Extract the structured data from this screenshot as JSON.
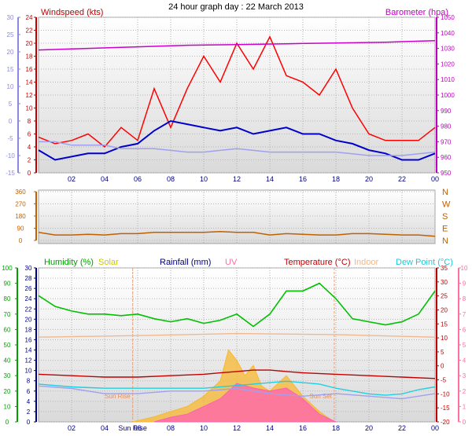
{
  "title": "24 hour graph day : 22 March 2013",
  "chart_data": [
    {
      "id": "wind",
      "type": "line",
      "labels": {
        "left": "Windspeed (kts)",
        "right": "Barometer (hpa)"
      },
      "x_ticks": [
        "02",
        "04",
        "06",
        "08",
        "10",
        "12",
        "14",
        "16",
        "18",
        "20",
        "22",
        "00"
      ],
      "axes": {
        "far_left": {
          "ticks": [
            30,
            25,
            20,
            15,
            10,
            5,
            0,
            -5,
            -10,
            -15
          ],
          "range": [
            -15,
            30
          ],
          "color": "#8a8ae0"
        },
        "left": {
          "ticks": [
            24,
            22,
            20,
            18,
            16,
            14,
            12,
            10,
            8,
            6,
            4,
            2,
            0
          ],
          "range": [
            0,
            24
          ],
          "color": "#c00000"
        },
        "right": {
          "ticks": [
            1050,
            1040,
            1030,
            1020,
            1010,
            1000,
            990,
            980,
            970,
            960,
            950
          ],
          "range": [
            950,
            1050
          ],
          "color": "#c000c0"
        }
      },
      "series": [
        {
          "key": "gust",
          "color": "#ff0000",
          "points": [
            [
              0,
              5.5
            ],
            [
              1,
              4.5
            ],
            [
              2,
              5
            ],
            [
              3,
              6
            ],
            [
              4,
              4
            ],
            [
              5,
              7
            ],
            [
              6,
              5
            ],
            [
              7,
              13
            ],
            [
              8,
              7
            ],
            [
              9,
              13
            ],
            [
              10,
              18
            ],
            [
              11,
              14
            ],
            [
              12,
              20
            ],
            [
              13,
              16
            ],
            [
              14,
              21
            ],
            [
              15,
              15
            ],
            [
              16,
              14
            ],
            [
              17,
              12
            ],
            [
              18,
              16
            ],
            [
              19,
              10
            ],
            [
              20,
              6
            ],
            [
              21,
              5
            ],
            [
              22,
              5
            ],
            [
              23,
              5
            ],
            [
              24,
              7
            ]
          ]
        },
        {
          "key": "average",
          "color": "#0000cc",
          "points": [
            [
              0,
              3.5
            ],
            [
              1,
              2
            ],
            [
              2,
              2.5
            ],
            [
              3,
              3
            ],
            [
              4,
              3
            ],
            [
              5,
              4
            ],
            [
              6,
              4.5
            ],
            [
              7,
              6.5
            ],
            [
              8,
              8
            ],
            [
              9,
              7.5
            ],
            [
              10,
              7
            ],
            [
              11,
              6.5
            ],
            [
              12,
              7
            ],
            [
              13,
              6
            ],
            [
              14,
              6.5
            ],
            [
              15,
              7
            ],
            [
              16,
              6
            ],
            [
              17,
              6
            ],
            [
              18,
              5
            ],
            [
              19,
              4.5
            ],
            [
              20,
              3.5
            ],
            [
              21,
              3
            ],
            [
              22,
              2
            ],
            [
              23,
              2
            ],
            [
              24,
              3
            ]
          ]
        },
        {
          "key": "secondary",
          "color": "#a0a0f0",
          "points": [
            [
              0,
              -6
            ],
            [
              1,
              -6
            ],
            [
              2,
              -7
            ],
            [
              3,
              -7
            ],
            [
              4,
              -7
            ],
            [
              5,
              -8
            ],
            [
              6,
              -8
            ],
            [
              7,
              -8
            ],
            [
              8,
              -8.5
            ],
            [
              9,
              -9
            ],
            [
              10,
              -9
            ],
            [
              11,
              -8.5
            ],
            [
              12,
              -8
            ],
            [
              13,
              -8.5
            ],
            [
              14,
              -9
            ],
            [
              15,
              -9
            ],
            [
              16,
              -9
            ],
            [
              17,
              -9
            ],
            [
              18,
              -9
            ],
            [
              19,
              -9.5
            ],
            [
              20,
              -10
            ],
            [
              21,
              -10
            ],
            [
              22,
              -10
            ],
            [
              23,
              -9.5
            ],
            [
              24,
              -9
            ]
          ]
        },
        {
          "key": "barometer",
          "color": "#cc00cc",
          "points": [
            [
              0,
              1029
            ],
            [
              3,
              1030
            ],
            [
              6,
              1031
            ],
            [
              9,
              1032
            ],
            [
              12,
              1032.5
            ],
            [
              15,
              1033
            ],
            [
              18,
              1033.5
            ],
            [
              21,
              1034
            ],
            [
              24,
              1035
            ]
          ]
        }
      ]
    },
    {
      "id": "direction",
      "type": "line",
      "y_ticks": [
        360,
        270,
        180,
        90,
        0
      ],
      "y_range": [
        0,
        360
      ],
      "compass": [
        "N",
        "W",
        "S",
        "E",
        "N"
      ],
      "series": [
        {
          "key": "wind_direction",
          "color": "#c06000",
          "points": [
            [
              0,
              60
            ],
            [
              1,
              40
            ],
            [
              2,
              40
            ],
            [
              3,
              45
            ],
            [
              4,
              40
            ],
            [
              5,
              50
            ],
            [
              6,
              50
            ],
            [
              7,
              60
            ],
            [
              8,
              60
            ],
            [
              9,
              60
            ],
            [
              10,
              60
            ],
            [
              11,
              65
            ],
            [
              12,
              60
            ],
            [
              13,
              60
            ],
            [
              14,
              40
            ],
            [
              15,
              50
            ],
            [
              16,
              45
            ],
            [
              17,
              40
            ],
            [
              18,
              40
            ],
            [
              19,
              50
            ],
            [
              20,
              50
            ],
            [
              21,
              45
            ],
            [
              22,
              40
            ],
            [
              23,
              40
            ],
            [
              24,
              30
            ]
          ]
        }
      ]
    },
    {
      "id": "weather",
      "type": "area",
      "labels": {
        "humidity": "Humidity (%)",
        "solar": "Solar",
        "rainfall": "Rainfall (mm)",
        "uv": "UV",
        "temperature": "Temperature (°C)",
        "indoor": "Indoor",
        "dewpoint": "Dew Point (°C)"
      },
      "x_ticks": [
        "02",
        "04",
        "Sun Rise",
        "06",
        "08",
        "10",
        "12",
        "14",
        "16",
        "18",
        "20",
        "22",
        "00"
      ],
      "sunrise_label": "Sun Rise",
      "sunset_label": "Sun Set",
      "sunrise_hour": 5.7,
      "sunset_hour": 17.9,
      "axes": {
        "humidity": {
          "ticks": [
            100,
            90,
            80,
            70,
            60,
            50,
            40,
            30,
            20,
            10,
            0
          ],
          "range": [
            0,
            100
          ],
          "color": "#00a000"
        },
        "rainfall": {
          "ticks": [
            30,
            28,
            26,
            24,
            22,
            20,
            18,
            16,
            14,
            12,
            10,
            8,
            6,
            4,
            2,
            0
          ],
          "range": [
            0,
            30
          ],
          "color": "#000080"
        },
        "temperature": {
          "ticks": [
            35,
            30,
            25,
            20,
            15,
            10,
            5,
            0,
            -5,
            -10,
            -15,
            -20
          ],
          "range": [
            -20,
            35
          ],
          "color": "#c00000"
        },
        "uv": {
          "ticks": [
            10,
            9,
            8,
            7,
            6,
            5,
            4,
            3,
            2,
            1,
            0
          ],
          "range": [
            0,
            10
          ],
          "color": "#ff70a0"
        }
      },
      "series": [
        {
          "key": "humidity",
          "color": "#00c000",
          "points": [
            [
              0,
              82
            ],
            [
              1,
              75
            ],
            [
              2,
              72
            ],
            [
              3,
              70
            ],
            [
              4,
              70
            ],
            [
              5,
              69
            ],
            [
              6,
              70
            ],
            [
              7,
              67
            ],
            [
              8,
              65
            ],
            [
              9,
              67
            ],
            [
              10,
              64
            ],
            [
              11,
              66
            ],
            [
              12,
              70
            ],
            [
              13,
              62
            ],
            [
              14,
              70
            ],
            [
              15,
              85
            ],
            [
              16,
              85
            ],
            [
              17,
              90
            ],
            [
              18,
              80
            ],
            [
              19,
              67
            ],
            [
              20,
              65
            ],
            [
              21,
              63
            ],
            [
              22,
              65
            ],
            [
              23,
              70
            ],
            [
              24,
              85
            ]
          ]
        },
        {
          "key": "temperature",
          "color": "#c00000",
          "points": [
            [
              0,
              -3
            ],
            [
              2,
              -3.5
            ],
            [
              4,
              -4
            ],
            [
              6,
              -4
            ],
            [
              8,
              -3.5
            ],
            [
              10,
              -3
            ],
            [
              11,
              -2.5
            ],
            [
              12,
              -2
            ],
            [
              13,
              -1.5
            ],
            [
              14,
              -1.5
            ],
            [
              15,
              -2
            ],
            [
              16,
              -2.5
            ],
            [
              18,
              -3
            ],
            [
              20,
              -3.5
            ],
            [
              22,
              -4
            ],
            [
              24,
              -4.5
            ]
          ]
        },
        {
          "key": "dew_point",
          "color": "#20d0e0",
          "points": [
            [
              0,
              -6.5
            ],
            [
              2,
              -7.5
            ],
            [
              4,
              -8
            ],
            [
              6,
              -8
            ],
            [
              8,
              -8
            ],
            [
              10,
              -8
            ],
            [
              12,
              -7
            ],
            [
              13,
              -6.5
            ],
            [
              14,
              -6
            ],
            [
              15,
              -5.5
            ],
            [
              16,
              -6
            ],
            [
              17,
              -6.5
            ],
            [
              18,
              -8
            ],
            [
              20,
              -10
            ],
            [
              21,
              -10.5
            ],
            [
              22,
              -10
            ],
            [
              23,
              -8.5
            ],
            [
              24,
              -7.5
            ]
          ]
        },
        {
          "key": "indoor",
          "color": "#f0b890",
          "points": [
            [
              0,
              16.5
            ],
            [
              6,
              16.8
            ],
            [
              12,
              17.2
            ],
            [
              18,
              17
            ],
            [
              24,
              16.5
            ]
          ]
        },
        {
          "key": "rain_secondary",
          "color": "#a0a0f0",
          "points": [
            [
              0,
              7
            ],
            [
              2,
              6.5
            ],
            [
              4,
              5.5
            ],
            [
              6,
              5.5
            ],
            [
              8,
              6
            ],
            [
              10,
              6
            ],
            [
              12,
              6.5
            ],
            [
              14,
              5.5
            ],
            [
              16,
              5
            ],
            [
              18,
              5.5
            ],
            [
              20,
              5
            ],
            [
              22,
              4.5
            ],
            [
              24,
              5.5
            ]
          ]
        },
        {
          "key": "solar",
          "color": "#f8b830",
          "points": [
            [
              5.7,
              0
            ],
            [
              7,
              1
            ],
            [
              8,
              2
            ],
            [
              9,
              3
            ],
            [
              10,
              5
            ],
            [
              11,
              8
            ],
            [
              11.5,
              14
            ],
            [
              12,
              12
            ],
            [
              12.5,
              9
            ],
            [
              13,
              11
            ],
            [
              13.5,
              7
            ],
            [
              14,
              6
            ],
            [
              15,
              9
            ],
            [
              16,
              5
            ],
            [
              17,
              2
            ],
            [
              17.9,
              0
            ]
          ]
        },
        {
          "key": "uv_index",
          "color": "#ff60b0",
          "points": [
            [
              7,
              0
            ],
            [
              8,
              0.3
            ],
            [
              9,
              0.5
            ],
            [
              10,
              1
            ],
            [
              11,
              1.5
            ],
            [
              12,
              2.5
            ],
            [
              13,
              2.2
            ],
            [
              14,
              2
            ],
            [
              15,
              2.2
            ],
            [
              16,
              1.5
            ],
            [
              17,
              0.5
            ],
            [
              18,
              0
            ]
          ]
        }
      ]
    }
  ]
}
